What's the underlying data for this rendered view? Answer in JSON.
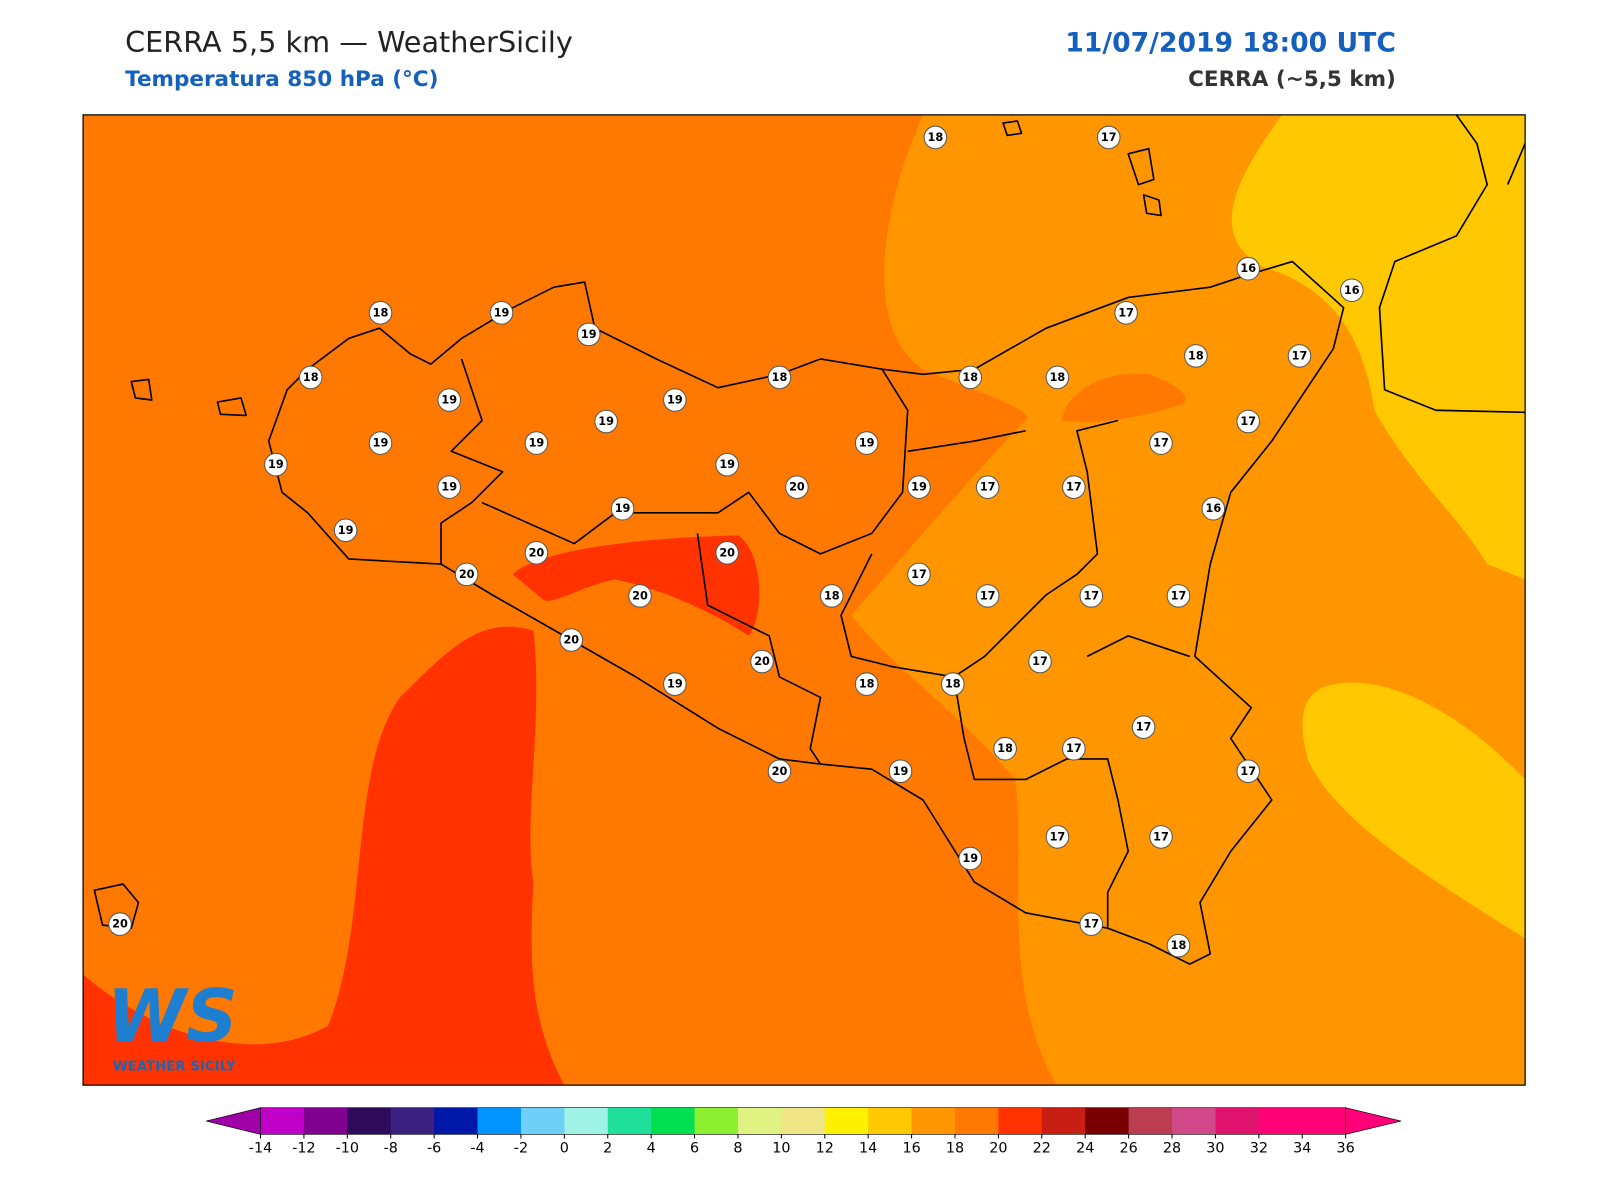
{
  "header": {
    "title": "CERRA 5,5 km — WeatherSicily",
    "subtitle": "Temperatura 850 hPa (°C)",
    "date": "11/07/2019 18:00 UTC",
    "model": "CERRA (~5,5 km)"
  },
  "stations": [
    18,
    17,
    16,
    16,
    18,
    19,
    19,
    17,
    18,
    17,
    18,
    18,
    18,
    18,
    19,
    19,
    19,
    17,
    19,
    19,
    19,
    17,
    19,
    19,
    19,
    20,
    19,
    17,
    17,
    19,
    16,
    19,
    20,
    20,
    20,
    17,
    20,
    18,
    17,
    17,
    17,
    20,
    17,
    20,
    19,
    18,
    18,
    17,
    18,
    17,
    20,
    19,
    17,
    17,
    17,
    19,
    20,
    17,
    18
  ],
  "colorbar": {
    "ticks": [
      -14,
      -12,
      -10,
      -8,
      -6,
      -4,
      -2,
      0,
      2,
      4,
      6,
      8,
      10,
      12,
      14,
      16,
      18,
      20,
      22,
      24,
      26,
      28,
      30,
      32,
      34,
      36
    ],
    "colors": [
      "#c000c8",
      "#800090",
      "#2e0a5a",
      "#3c2080",
      "#0018a8",
      "#0094ff",
      "#6ed0f8",
      "#9ef2e6",
      "#1ee09a",
      "#00e050",
      "#8cf030",
      "#e0f282",
      "#f0e686",
      "#fff000",
      "#ffc800",
      "#ff9600",
      "#ff7800",
      "#ff3200",
      "#c81e14",
      "#780000",
      "#bc3c50",
      "#d04888",
      "#e0146e",
      "#ff0078",
      "#ff0078"
    ],
    "under": "#a000a8",
    "over": "#ff0078"
  },
  "logo": {
    "mark": "WS",
    "name": "WEATHER SICILY"
  }
}
